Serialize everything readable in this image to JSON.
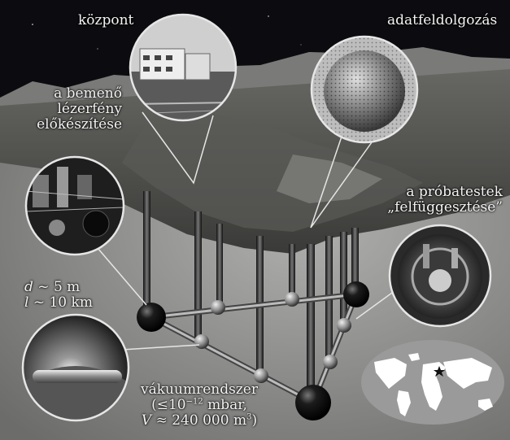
{
  "labels": {
    "kozpont": "központ",
    "adatfeldolgozas": "adatfeldolgozás",
    "lezer_line1": "a bemenő",
    "lezer_line2": "lézerfény",
    "lezer_line3": "előkészítése",
    "probatestek_line1": "a próbatestek",
    "probatestek_line2": "„felfüggesztése”",
    "d_var": "d",
    "d_value": " ~ 5 m",
    "l_var": "l",
    "l_value": "~ 10 km",
    "vakuum_line1": "vákuumrendszer",
    "vakuum_line2_pre": "(≤10",
    "vakuum_line2_exp": "−12",
    "vakuum_line2_post": " mbar,",
    "vakuum_line3_var": "V",
    "vakuum_line3_pre": " ≈ 240 000 m",
    "vakuum_line3_exp": "3",
    "vakuum_line3_post": ")"
  },
  "colors": {
    "background": "#0c0c10",
    "terrain": "#4a4a48",
    "ground_plane": "#8a8a88",
    "strut": "#2a2a2a",
    "callout_line": "#e6e6e6",
    "ocean": "#9a9a9a",
    "land": "#ffffff"
  },
  "icons": {
    "location_marker": "star-marker-icon"
  }
}
